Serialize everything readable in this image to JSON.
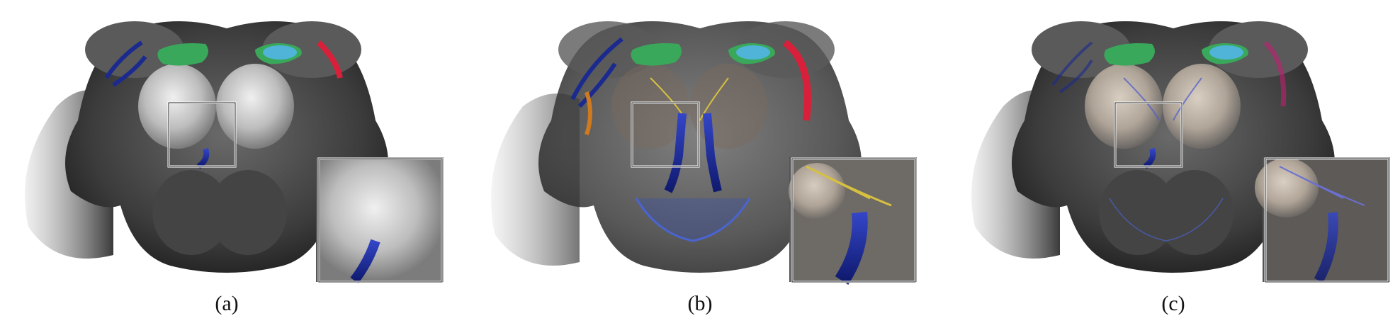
{
  "figure": {
    "panels": [
      {
        "id": "a",
        "label": "(a)",
        "style": "opaque"
      },
      {
        "id": "b",
        "label": "(b)",
        "style": "transparent-surface"
      },
      {
        "id": "c",
        "label": "(c)",
        "style": "semi-transparent"
      }
    ]
  },
  "colors": {
    "background": "#ffffff",
    "brain_shell": "#4a4a4a",
    "highlight_region": "#d8d8d8",
    "green_structure": "#3aa85a",
    "cyan_structure": "#4fb4d8",
    "blue_neuron": "#1b2a8f",
    "red_neuron": "#d8203a",
    "orange_neuron": "#d07a20",
    "yellow_fiber": "#d6c040",
    "magenta_neuron": "#c02070"
  }
}
